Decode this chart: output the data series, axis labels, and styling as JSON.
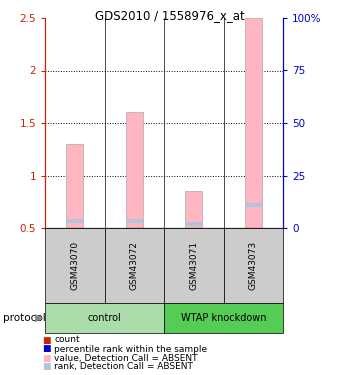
{
  "title": "GDS2010 / 1558976_x_at",
  "samples": [
    "GSM43070",
    "GSM43072",
    "GSM43071",
    "GSM43073"
  ],
  "bar_values": [
    1.3,
    1.6,
    0.85,
    2.5
  ],
  "rank_values": [
    0.57,
    0.57,
    0.54,
    0.72
  ],
  "bar_color_absent": "#FFB6C1",
  "rank_color_absent": "#B0C4DE",
  "bar_bottom": 0.5,
  "ylim": [
    0.5,
    2.5
  ],
  "yticks_left": [
    0.5,
    1.0,
    1.5,
    2.0,
    2.5
  ],
  "yticks_right_vals": [
    0,
    25,
    50,
    75,
    100
  ],
  "yticks_right_labels": [
    "0",
    "25",
    "50",
    "75",
    "100%"
  ],
  "left_axis_color": "#CC2200",
  "right_axis_color": "#0000CC",
  "group_control_label": "control",
  "group_knockdown_label": "WTAP knockdown",
  "group_control_color": "#aaddaa",
  "group_knockdown_color": "#55cc55",
  "legend_colors": [
    "#CC2200",
    "#0000CC",
    "#FFB6C1",
    "#B0C4DE"
  ],
  "legend_labels": [
    "count",
    "percentile rank within the sample",
    "value, Detection Call = ABSENT",
    "rank, Detection Call = ABSENT"
  ]
}
